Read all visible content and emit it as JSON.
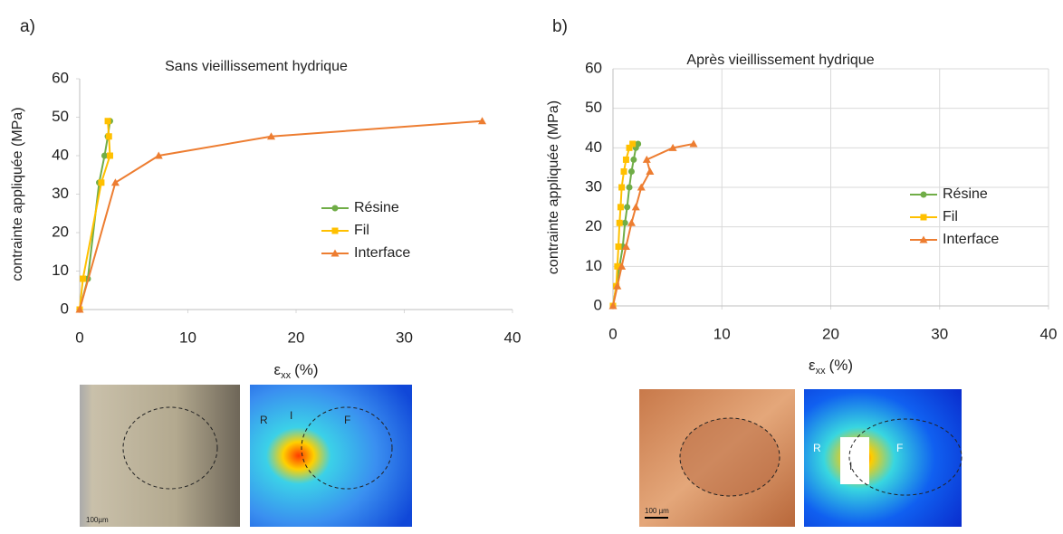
{
  "chart_data": [
    {
      "type": "line",
      "panel_label": "a)",
      "title": "Sans vieillissement hydrique",
      "y_label": "contrainte appliquée (MPa)",
      "x_label": "ε",
      "x_label_sub": "xx",
      "x_label_unit": "(%)",
      "xlim": [
        0,
        40
      ],
      "xticks": [
        0,
        10,
        20,
        30,
        40
      ],
      "ylim": [
        0,
        60
      ],
      "yticks": [
        0,
        10,
        20,
        30,
        40,
        50,
        60
      ],
      "grid": false,
      "legend": "right",
      "series": [
        {
          "name": "Résine",
          "color": "#70ad47",
          "marker": "circle",
          "x": [
            0,
            0.75,
            1.8,
            2.3,
            2.6,
            2.8
          ],
          "values": [
            0,
            8,
            33,
            40,
            45,
            49
          ]
        },
        {
          "name": "Fil",
          "color": "#ffc000",
          "marker": "square",
          "x": [
            0,
            0.3,
            2.0,
            2.8,
            2.7,
            2.6
          ],
          "values": [
            0,
            8,
            33,
            40,
            45,
            49
          ]
        },
        {
          "name": "Interface",
          "color": "#ed7d31",
          "marker": "triangle",
          "x": [
            0,
            3.3,
            7.3,
            17.7,
            37.2
          ],
          "values": [
            0,
            33,
            40,
            45,
            49
          ]
        }
      ]
    },
    {
      "type": "line",
      "panel_label": "b)",
      "title": "Après vieillissement hydrique",
      "y_label": "contrainte appliquée (MPa)",
      "x_label": "ε",
      "x_label_sub": "xx",
      "x_label_unit": "(%)",
      "xlim": [
        0,
        40
      ],
      "xticks": [
        0,
        10,
        20,
        30,
        40
      ],
      "ylim": [
        0,
        60
      ],
      "yticks": [
        0,
        10,
        20,
        30,
        40,
        50,
        60
      ],
      "grid": true,
      "legend": "right",
      "series": [
        {
          "name": "Résine",
          "color": "#70ad47",
          "marker": "circle",
          "x": [
            0,
            0.3,
            0.6,
            0.9,
            1.1,
            1.3,
            1.5,
            1.7,
            1.9,
            2.1,
            2.3
          ],
          "values": [
            0,
            5,
            10,
            15,
            21,
            25,
            30,
            34,
            37,
            40,
            41
          ]
        },
        {
          "name": "Fil",
          "color": "#ffc000",
          "marker": "square",
          "x": [
            0,
            0.3,
            0.4,
            0.5,
            0.6,
            0.7,
            0.8,
            1.0,
            1.2,
            1.5,
            1.8
          ],
          "values": [
            0,
            5,
            10,
            15,
            21,
            25,
            30,
            34,
            37,
            40,
            41
          ]
        },
        {
          "name": "Interface",
          "color": "#ed7d31",
          "marker": "triangle",
          "x": [
            0,
            0.4,
            0.8,
            1.2,
            1.7,
            2.1,
            2.6,
            3.4,
            3.1,
            5.5,
            7.4
          ],
          "values": [
            0,
            5,
            10,
            15,
            21,
            25,
            30,
            34,
            37,
            40,
            41
          ]
        }
      ]
    }
  ],
  "figures": [
    {
      "scale": "100µm",
      "markers": [
        "R",
        "I",
        "F"
      ]
    },
    {
      "scale": "100 µm",
      "markers": [
        "R",
        "I",
        "F"
      ]
    }
  ]
}
